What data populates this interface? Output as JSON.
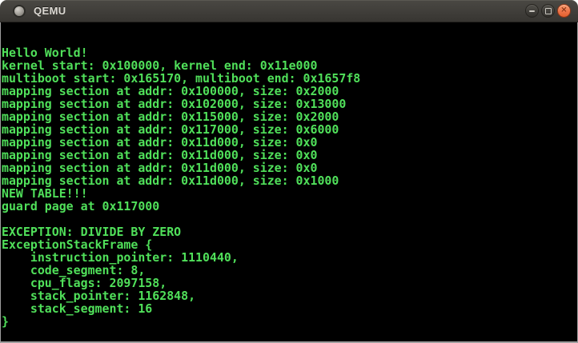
{
  "window": {
    "title": "QEMU",
    "icon": "app-window-icon",
    "controls": {
      "minimize_label": "minimize",
      "maximize_label": "maximize",
      "close_label": "close",
      "close_glyph": "✕"
    }
  },
  "colors": {
    "titlebar_background": "#403e3a",
    "titlebar_text": "#dcd9d3",
    "close_button_orange": "#ee7448",
    "console_background": "#000000",
    "console_text_green": "#50e05a",
    "window_border_gray": "#9e9e9e"
  },
  "console": {
    "text_color": "#50e05a",
    "lines": [
      "Hello World!",
      "kernel start: 0x100000, kernel end: 0x11e000",
      "multiboot start: 0x165170, multiboot end: 0x1657f8",
      "mapping section at addr: 0x100000, size: 0x2000",
      "mapping section at addr: 0x102000, size: 0x13000",
      "mapping section at addr: 0x115000, size: 0x2000",
      "mapping section at addr: 0x117000, size: 0x6000",
      "mapping section at addr: 0x11d000, size: 0x0",
      "mapping section at addr: 0x11d000, size: 0x0",
      "mapping section at addr: 0x11d000, size: 0x0",
      "mapping section at addr: 0x11d000, size: 0x1000",
      "NEW TABLE!!!",
      "guard page at 0x117000",
      "",
      "EXCEPTION: DIVIDE BY ZERO",
      "ExceptionStackFrame {",
      "    instruction_pointer: 1110440,",
      "    code_segment: 8,",
      "    cpu_flags: 2097158,",
      "    stack_pointer: 1162848,",
      "    stack_segment: 16",
      "}"
    ]
  }
}
